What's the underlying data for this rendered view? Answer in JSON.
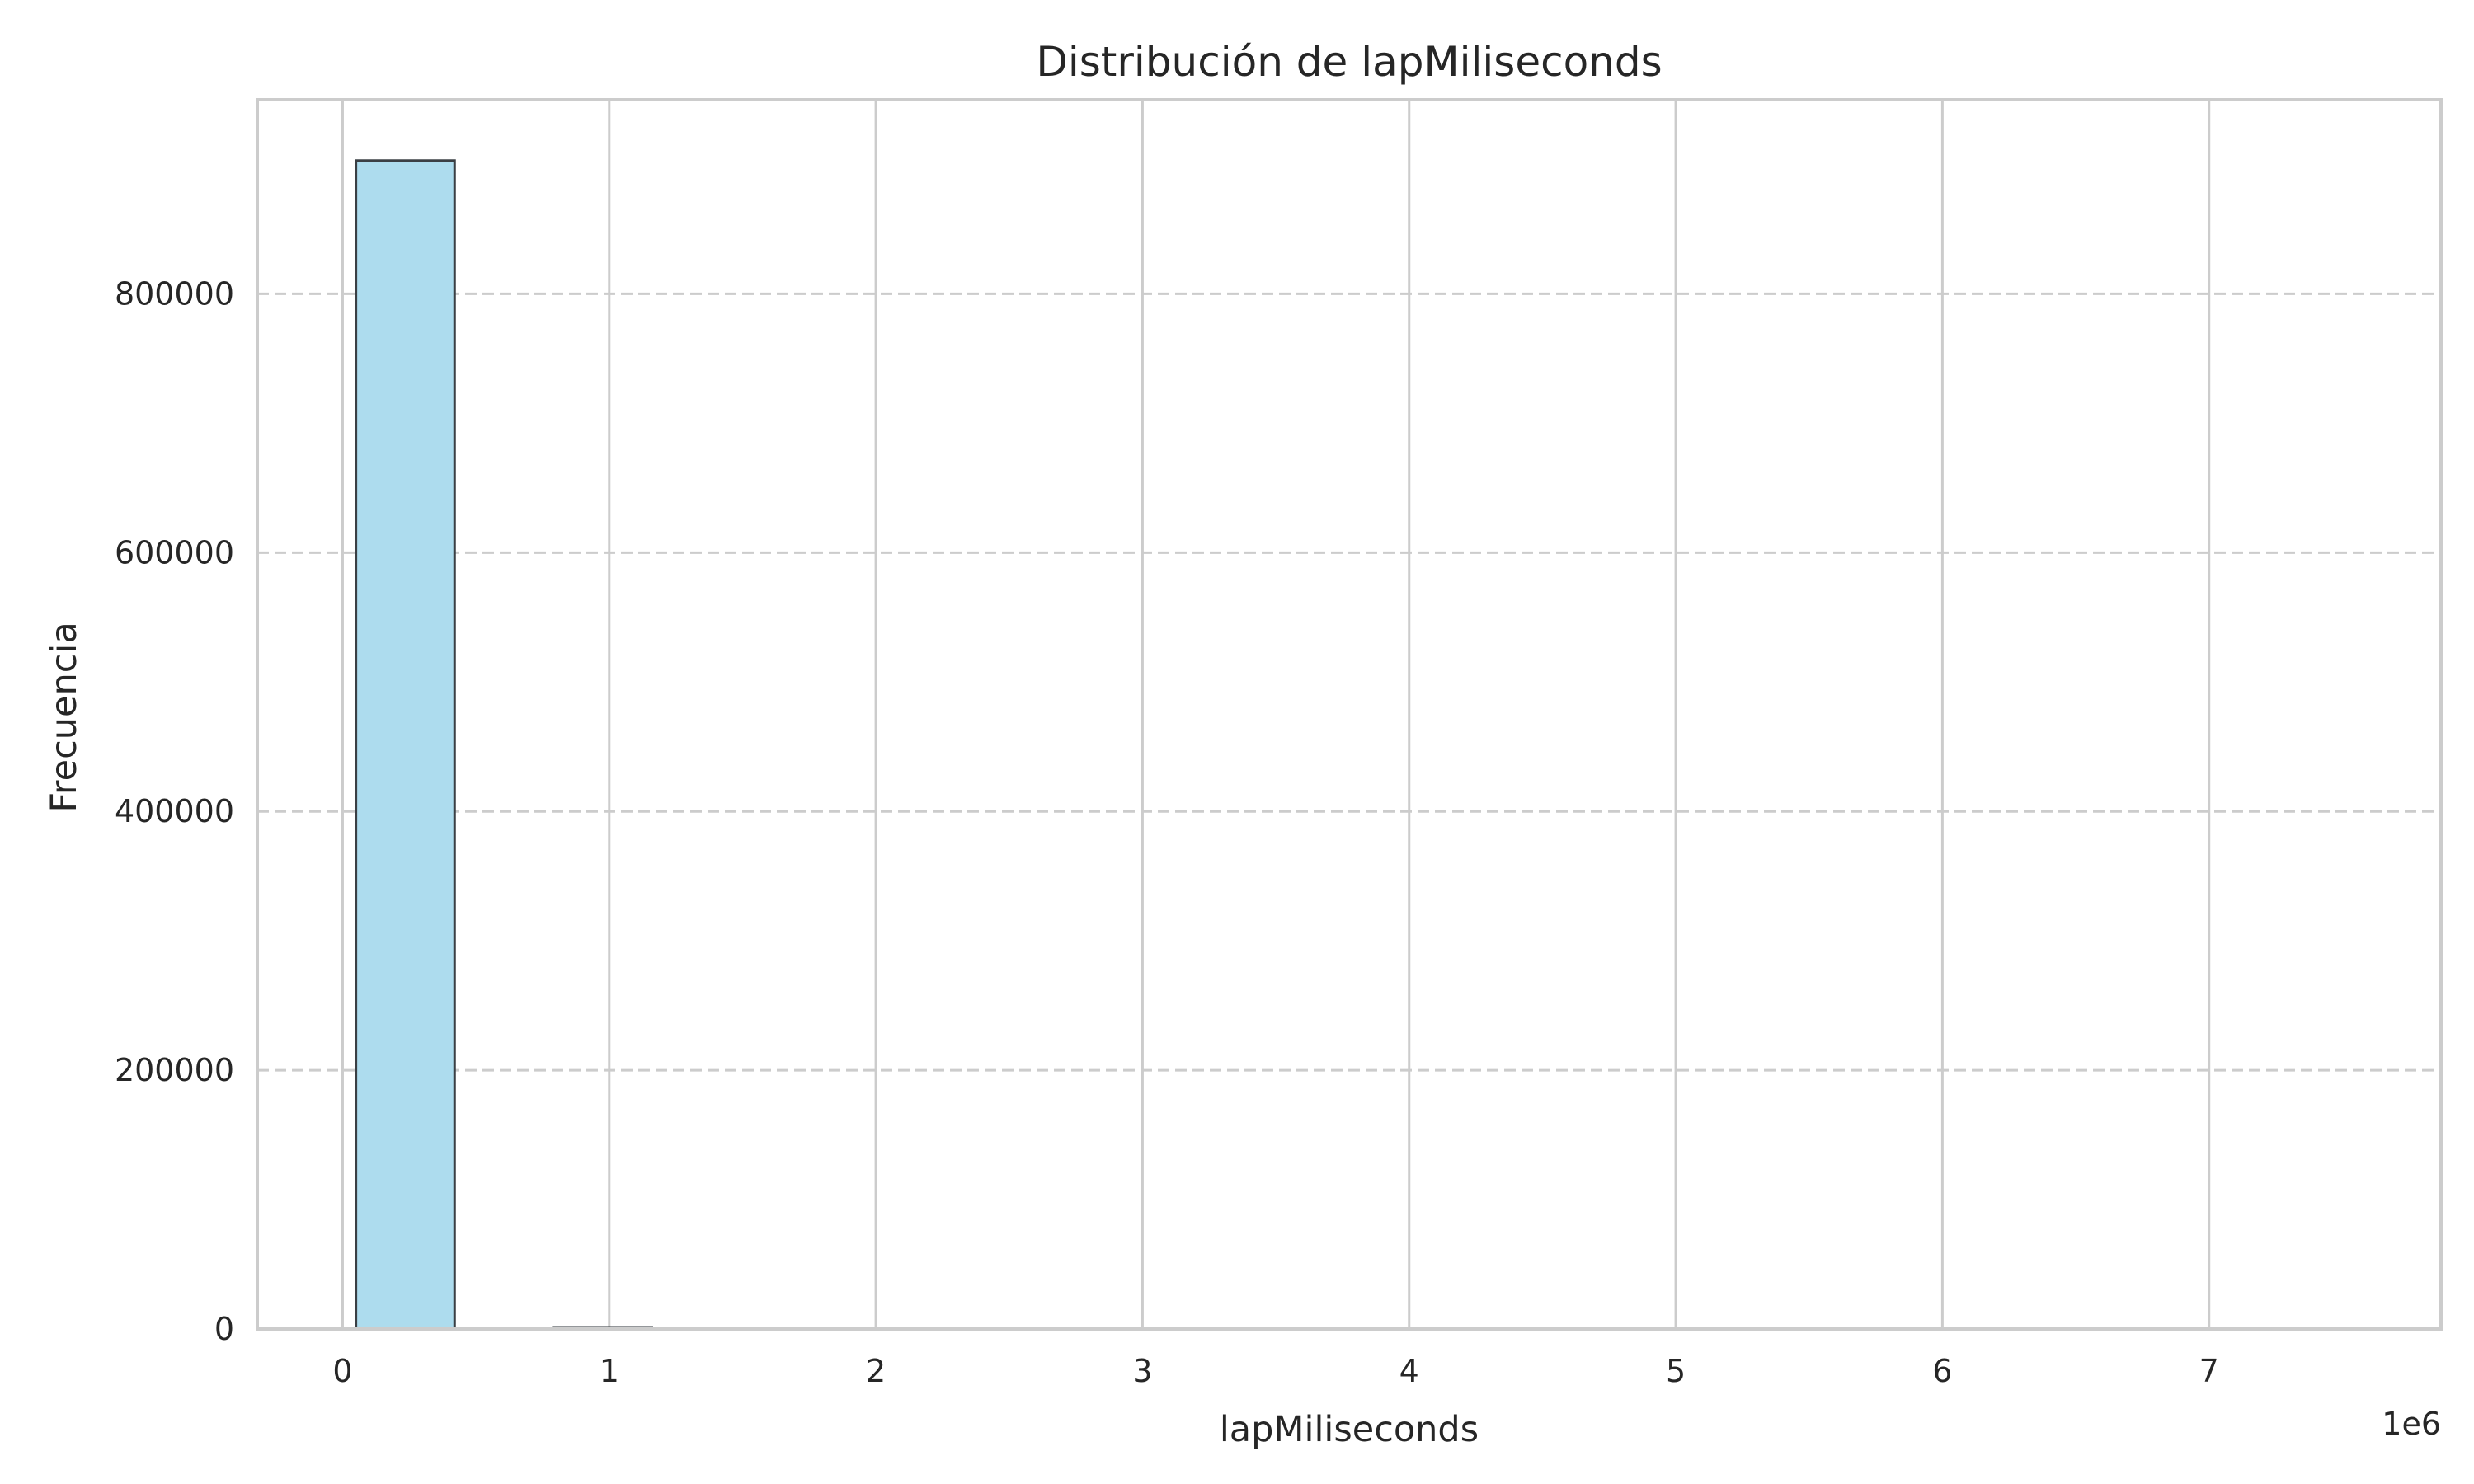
{
  "chart_data": {
    "type": "bar",
    "title": "Distribución de lapMiliseconds",
    "xlabel": "lapMiliseconds",
    "ylabel": "Frecuencia",
    "x_offset_label": "1e6",
    "x_ticks": [
      0,
      1,
      2,
      3,
      4,
      5,
      6,
      7
    ],
    "x_tick_labels": [
      "0",
      "1",
      "2",
      "3",
      "4",
      "5",
      "6",
      "7"
    ],
    "y_ticks": [
      0,
      200000,
      400000,
      600000,
      800000
    ],
    "y_tick_labels": [
      "0",
      "200000",
      "400000",
      "600000",
      "800000"
    ],
    "xlim": [
      -0.32,
      7.87
    ],
    "ylim": [
      0,
      950000
    ],
    "bins": [
      {
        "x0": 0.05,
        "x1": 0.42,
        "value": 903000
      },
      {
        "x0": 0.79,
        "x1": 1.16,
        "value": 1300
      },
      {
        "x0": 1.16,
        "x1": 1.53,
        "value": 900
      },
      {
        "x0": 1.53,
        "x1": 1.9,
        "value": 800
      },
      {
        "x0": 1.9,
        "x1": 2.27,
        "value": 700
      },
      {
        "x0": 2.27,
        "x1": 2.64,
        "value": 250
      },
      {
        "x0": 2.64,
        "x1": 3.01,
        "value": 150
      },
      {
        "x0": 3.01,
        "x1": 3.38,
        "value": 100
      },
      {
        "x0": 3.38,
        "x1": 3.75,
        "value": 80
      },
      {
        "x0": 3.75,
        "x1": 4.12,
        "value": 60
      },
      {
        "x0": 4.12,
        "x1": 4.49,
        "value": 50
      },
      {
        "x0": 4.49,
        "x1": 4.86,
        "value": 40
      },
      {
        "x0": 4.86,
        "x1": 5.23,
        "value": 30
      },
      {
        "x0": 5.23,
        "x1": 5.6,
        "value": 30
      },
      {
        "x0": 5.6,
        "x1": 5.97,
        "value": 20
      },
      {
        "x0": 5.97,
        "x1": 6.34,
        "value": 20
      },
      {
        "x0": 6.34,
        "x1": 6.71,
        "value": 20
      },
      {
        "x0": 6.71,
        "x1": 7.08,
        "value": 10
      },
      {
        "x0": 7.08,
        "x1": 7.45,
        "value": 10
      }
    ],
    "x_grid": true,
    "y_grid": true,
    "y_grid_style": "dashed",
    "bar_color": "#ADDCEE",
    "bar_edge_color": "#3A3F44",
    "grid_color": "#CCCCCC",
    "axes_edge_color": "#CCCCCC",
    "legend": null
  }
}
